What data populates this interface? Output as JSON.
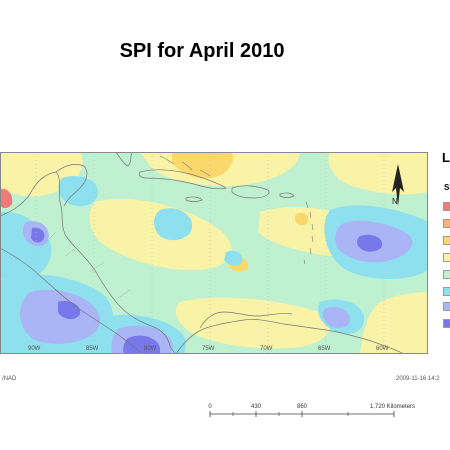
{
  "title": "SPI for  April 2010",
  "legend": {
    "title": "L",
    "subtitle": "SI",
    "swatches": [
      "#f07a7a",
      "#f7b47a",
      "#fbd86b",
      "#f9f3a8",
      "#bff0d0",
      "#8fe0ee",
      "#a9b5f5",
      "#7878ea"
    ]
  },
  "longitude_labels": [
    "90W",
    "85W",
    "80W",
    "75W",
    "70W",
    "65W",
    "60W"
  ],
  "footer": {
    "left": "/NAD",
    "right": "2009-11-16  14:2"
  },
  "scale_bar": {
    "labels": [
      "0",
      "430",
      "860",
      "1,720 Kilometers"
    ]
  },
  "north_arrow": "N"
}
